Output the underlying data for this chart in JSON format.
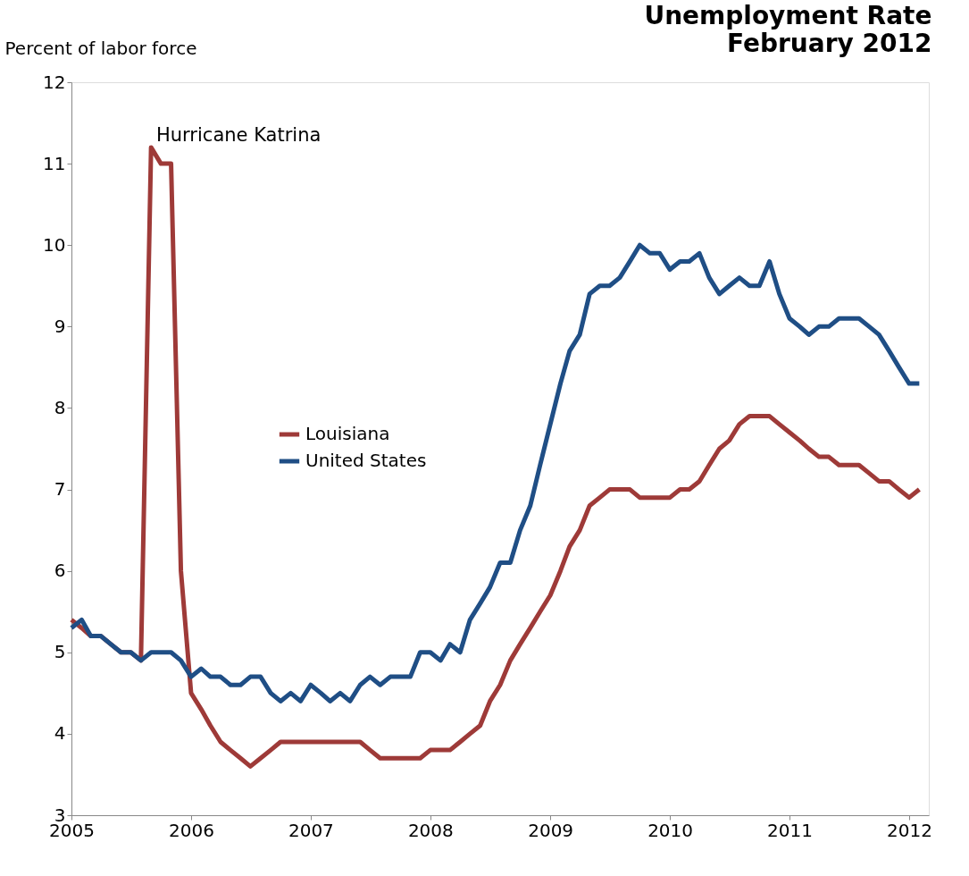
{
  "chart_data": {
    "type": "line",
    "title": "Unemployment Rate",
    "subtitle": "February 2012",
    "ylabel": "Percent of labor force",
    "x": [
      "2005-01",
      "2005-02",
      "2005-03",
      "2005-04",
      "2005-05",
      "2005-06",
      "2005-07",
      "2005-08",
      "2005-09",
      "2005-10",
      "2005-11",
      "2005-12",
      "2006-01",
      "2006-02",
      "2006-03",
      "2006-04",
      "2006-05",
      "2006-06",
      "2006-07",
      "2006-08",
      "2006-09",
      "2006-10",
      "2006-11",
      "2006-12",
      "2007-01",
      "2007-02",
      "2007-03",
      "2007-04",
      "2007-05",
      "2007-06",
      "2007-07",
      "2007-08",
      "2007-09",
      "2007-10",
      "2007-11",
      "2007-12",
      "2008-01",
      "2008-02",
      "2008-03",
      "2008-04",
      "2008-05",
      "2008-06",
      "2008-07",
      "2008-08",
      "2008-09",
      "2008-10",
      "2008-11",
      "2008-12",
      "2009-01",
      "2009-02",
      "2009-03",
      "2009-04",
      "2009-05",
      "2009-06",
      "2009-07",
      "2009-08",
      "2009-09",
      "2009-10",
      "2009-11",
      "2009-12",
      "2010-01",
      "2010-02",
      "2010-03",
      "2010-04",
      "2010-05",
      "2010-06",
      "2010-07",
      "2010-08",
      "2010-09",
      "2010-10",
      "2010-11",
      "2010-12",
      "2011-01",
      "2011-02",
      "2011-03",
      "2011-04",
      "2011-05",
      "2011-06",
      "2011-07",
      "2011-08",
      "2011-09",
      "2011-10",
      "2011-11",
      "2011-12",
      "2012-01",
      "2012-02"
    ],
    "series": [
      {
        "name": "Louisiana",
        "color": "#9e3a38",
        "values": [
          5.4,
          5.3,
          5.2,
          5.2,
          5.1,
          5.0,
          5.0,
          4.9,
          11.2,
          11.0,
          11.0,
          6.0,
          4.5,
          4.3,
          4.1,
          3.9,
          3.8,
          3.7,
          3.6,
          3.7,
          3.8,
          3.9,
          3.9,
          3.9,
          3.9,
          3.9,
          3.9,
          3.9,
          3.9,
          3.9,
          3.8,
          3.7,
          3.7,
          3.7,
          3.7,
          3.7,
          3.8,
          3.8,
          3.8,
          3.9,
          4.0,
          4.1,
          4.4,
          4.6,
          4.9,
          5.1,
          5.3,
          5.5,
          5.7,
          6.0,
          6.3,
          6.5,
          6.8,
          6.9,
          7.0,
          7.0,
          7.0,
          6.9,
          6.9,
          6.9,
          6.9,
          7.0,
          7.0,
          7.1,
          7.3,
          7.5,
          7.6,
          7.8,
          7.9,
          7.9,
          7.9,
          7.8,
          7.7,
          7.6,
          7.5,
          7.4,
          7.4,
          7.3,
          7.3,
          7.3,
          7.2,
          7.1,
          7.1,
          7.0,
          6.9,
          7.0
        ]
      },
      {
        "name": "United States",
        "color": "#1f4e85",
        "values": [
          5.3,
          5.4,
          5.2,
          5.2,
          5.1,
          5.0,
          5.0,
          4.9,
          5.0,
          5.0,
          5.0,
          4.9,
          4.7,
          4.8,
          4.7,
          4.7,
          4.6,
          4.6,
          4.7,
          4.7,
          4.5,
          4.4,
          4.5,
          4.4,
          4.6,
          4.5,
          4.4,
          4.5,
          4.4,
          4.6,
          4.7,
          4.6,
          4.7,
          4.7,
          4.7,
          5.0,
          5.0,
          4.9,
          5.1,
          5.0,
          5.4,
          5.6,
          5.8,
          6.1,
          6.1,
          6.5,
          6.8,
          7.3,
          7.8,
          8.3,
          8.7,
          8.9,
          9.4,
          9.5,
          9.5,
          9.6,
          9.8,
          10.0,
          9.9,
          9.9,
          9.7,
          9.8,
          9.8,
          9.9,
          9.6,
          9.4,
          9.5,
          9.6,
          9.5,
          9.5,
          9.8,
          9.4,
          9.1,
          9.0,
          8.9,
          9.0,
          9.0,
          9.1,
          9.1,
          9.1,
          9.0,
          8.9,
          8.7,
          8.5,
          8.3,
          8.3
        ]
      }
    ],
    "xlim": [
      "2005-01",
      "2012-03"
    ],
    "xticks": [
      "2005",
      "2006",
      "2007",
      "2008",
      "2009",
      "2010",
      "2011",
      "2012"
    ],
    "ylim": [
      3,
      12
    ],
    "yticks": [
      3,
      4,
      5,
      6,
      7,
      8,
      9,
      10,
      11,
      12
    ],
    "annotations": [
      "Hurricane Katrina"
    ],
    "grid": false,
    "legend": "left",
    "marker": "none",
    "line_style": "solid"
  }
}
